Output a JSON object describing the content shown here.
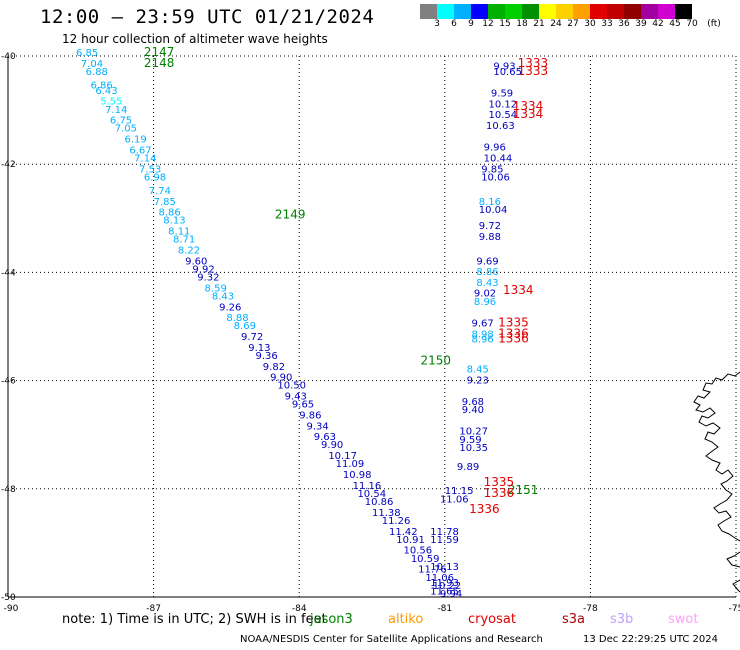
{
  "header": {
    "title": "12:00 – 23:59 UTC 01/21/2024",
    "subtitle": "12 hour collection of altimeter wave heights"
  },
  "color_scale": {
    "unit": "(ft)",
    "colors": [
      "#808080",
      "#00ffff",
      "#00b0ff",
      "#0000ff",
      "#00b000",
      "#00d000",
      "#009000",
      "#ffff00",
      "#ffd000",
      "#ffa000",
      "#e00000",
      "#c00000",
      "#900000",
      "#a000a0",
      "#d000d0",
      "#000000"
    ],
    "labels": [
      "3",
      "6",
      "9",
      "12",
      "15",
      "18",
      "21",
      "24",
      "27",
      "30",
      "33",
      "36",
      "39",
      "42",
      "45",
      "70"
    ]
  },
  "note": "note:  1) Time is in UTC; 2) SWH is in feet",
  "satellites": [
    {
      "name": "jason3",
      "color": "#008000"
    },
    {
      "name": "altiko",
      "color": "#ff9900"
    },
    {
      "name": "cryosat",
      "color": "#e00000"
    },
    {
      "name": "s3a",
      "color": "#b00000"
    },
    {
      "name": "s3b",
      "color": "#c0a0ff"
    },
    {
      "name": "swot",
      "color": "#ffa0ff"
    }
  ],
  "footer": {
    "credit": "NOAA/NESDIS Center for Satellite Applications and Research",
    "timestamp": "13 Dec 22:29:25 UTC 2024"
  },
  "chart_data": {
    "type": "scatter",
    "title": "12:00 – 23:59 UTC 01/21/2024",
    "subtitle": "12 hour collection of altimeter wave heights",
    "xlabel": "",
    "ylabel": "",
    "xlim": [
      -90,
      -75
    ],
    "ylim": [
      -50,
      -40
    ],
    "xticks": [
      -87,
      -84,
      -81,
      -78,
      -75
    ],
    "xtick_labels": [
      "-87",
      "-84",
      "-81",
      "-78",
      "-75"
    ],
    "yticks": [
      -40,
      -42,
      -44,
      -46,
      -48,
      -50
    ],
    "ytick_labels": [
      "-40",
      "-42",
      "-44",
      "-46",
      "-48",
      "-50"
    ],
    "grid": true,
    "series": [
      {
        "name": "jason3",
        "points": [
          {
            "x": -88.6,
            "y": -40.0,
            "v": "6.85"
          },
          {
            "x": -88.5,
            "y": -40.2,
            "v": "7.04"
          },
          {
            "x": -88.4,
            "y": -40.35,
            "v": "6.88"
          },
          {
            "x": -88.3,
            "y": -40.6,
            "v": "6.86"
          },
          {
            "x": -88.2,
            "y": -40.7,
            "v": "6.43"
          },
          {
            "x": -88.1,
            "y": -40.9,
            "v": "5.55"
          },
          {
            "x": -88.0,
            "y": -41.05,
            "v": "7.14"
          },
          {
            "x": -87.9,
            "y": -41.25,
            "v": "6.75"
          },
          {
            "x": -87.8,
            "y": -41.4,
            "v": "7.05"
          },
          {
            "x": -87.6,
            "y": -41.6,
            "v": "6.19"
          },
          {
            "x": -87.5,
            "y": -41.8,
            "v": "6.67"
          },
          {
            "x": -87.4,
            "y": -41.95,
            "v": "7.14"
          },
          {
            "x": -87.3,
            "y": -42.15,
            "v": "7.53"
          },
          {
            "x": -87.2,
            "y": -42.3,
            "v": "6.98"
          },
          {
            "x": -87.1,
            "y": -42.55,
            "v": "7.74"
          },
          {
            "x": -87.0,
            "y": -42.75,
            "v": "7.85"
          },
          {
            "x": -86.9,
            "y": -42.95,
            "v": "8.86"
          },
          {
            "x": -86.8,
            "y": -43.1,
            "v": "8.13"
          },
          {
            "x": -86.7,
            "y": -43.3,
            "v": "8.11"
          },
          {
            "x": -86.6,
            "y": -43.45,
            "v": "8.71"
          },
          {
            "x": -86.5,
            "y": -43.65,
            "v": "8.22"
          },
          {
            "x": -86.35,
            "y": -43.85,
            "v": "9.60"
          },
          {
            "x": -86.2,
            "y": -44.0,
            "v": "9.92"
          },
          {
            "x": -86.1,
            "y": -44.15,
            "v": "9.32"
          },
          {
            "x": -85.95,
            "y": -44.35,
            "v": "8.59"
          },
          {
            "x": -85.8,
            "y": -44.5,
            "v": "8.43"
          },
          {
            "x": -85.65,
            "y": -44.7,
            "v": "9.26"
          },
          {
            "x": -85.5,
            "y": -44.9,
            "v": "8.88"
          },
          {
            "x": -85.35,
            "y": -45.05,
            "v": "8.69"
          },
          {
            "x": -85.2,
            "y": -45.25,
            "v": "9.72"
          },
          {
            "x": -85.05,
            "y": -45.45,
            "v": "9.13"
          },
          {
            "x": -84.9,
            "y": -45.6,
            "v": "9.36"
          },
          {
            "x": -84.75,
            "y": -45.8,
            "v": "9.82"
          },
          {
            "x": -84.6,
            "y": -46.0,
            "v": "9.90"
          },
          {
            "x": -84.45,
            "y": -46.15,
            "v": "10.50"
          },
          {
            "x": -84.3,
            "y": -46.35,
            "v": "9.43"
          },
          {
            "x": -84.15,
            "y": -46.5,
            "v": "9.65"
          },
          {
            "x": -84.0,
            "y": -46.7,
            "v": "9.86"
          },
          {
            "x": -83.85,
            "y": -46.9,
            "v": "9.34"
          },
          {
            "x": -83.7,
            "y": -47.1,
            "v": "9.63"
          },
          {
            "x": -83.55,
            "y": -47.25,
            "v": "9.90"
          },
          {
            "x": -83.4,
            "y": -47.45,
            "v": "10.17"
          },
          {
            "x": -83.25,
            "y": -47.6,
            "v": "11.09"
          },
          {
            "x": -83.1,
            "y": -47.8,
            "v": "10.98"
          },
          {
            "x": -82.9,
            "y": -48.0,
            "v": "11.16"
          },
          {
            "x": -82.8,
            "y": -48.15,
            "v": "10.54"
          },
          {
            "x": -82.65,
            "y": -48.3,
            "v": "10.86"
          },
          {
            "x": -82.5,
            "y": -48.5,
            "v": "11.38"
          },
          {
            "x": -82.3,
            "y": -48.65,
            "v": "11.26"
          },
          {
            "x": -82.15,
            "y": -48.85,
            "v": "11.42"
          },
          {
            "x": -82.0,
            "y": -49.0,
            "v": "10.91"
          },
          {
            "x": -81.85,
            "y": -49.2,
            "v": "10.56"
          },
          {
            "x": -81.7,
            "y": -49.35,
            "v": "10.59"
          },
          {
            "x": -81.55,
            "y": -49.55,
            "v": "11.76"
          },
          {
            "x": -81.4,
            "y": -49.7,
            "v": "11.06"
          },
          {
            "x": -81.25,
            "y": -49.85,
            "v": "10.22"
          },
          {
            "x": -81.1,
            "y": -50.0,
            "v": "9.94"
          }
        ]
      },
      {
        "name": "cryosat",
        "points": [
          {
            "x": -80.0,
            "y": -40.25,
            "v": "9.93"
          },
          {
            "x": -80.0,
            "y": -40.35,
            "v": "10.65"
          },
          {
            "x": -80.05,
            "y": -40.75,
            "v": "9.59"
          },
          {
            "x": -80.1,
            "y": -40.95,
            "v": "10.12"
          },
          {
            "x": -80.1,
            "y": -41.15,
            "v": "10.54"
          },
          {
            "x": -80.15,
            "y": -41.35,
            "v": "10.63"
          },
          {
            "x": -80.2,
            "y": -41.75,
            "v": "9.96"
          },
          {
            "x": -80.2,
            "y": -41.95,
            "v": "10.44"
          },
          {
            "x": -80.25,
            "y": -42.15,
            "v": "9.85"
          },
          {
            "x": -80.25,
            "y": -42.3,
            "v": "10.06"
          },
          {
            "x": -80.3,
            "y": -42.75,
            "v": "8.16"
          },
          {
            "x": -80.3,
            "y": -42.9,
            "v": "10.04"
          },
          {
            "x": -80.3,
            "y": -43.2,
            "v": "9.72"
          },
          {
            "x": -80.3,
            "y": -43.4,
            "v": "9.88"
          },
          {
            "x": -80.35,
            "y": -43.85,
            "v": "9.69"
          },
          {
            "x": -80.35,
            "y": -44.05,
            "v": "8.86"
          },
          {
            "x": -80.35,
            "y": -44.25,
            "v": "8.43"
          },
          {
            "x": -80.4,
            "y": -44.45,
            "v": "9.02"
          },
          {
            "x": -80.4,
            "y": -44.6,
            "v": "8.96"
          },
          {
            "x": -80.45,
            "y": -45.0,
            "v": "9.67"
          },
          {
            "x": -80.45,
            "y": -45.2,
            "v": "8.98"
          },
          {
            "x": -80.45,
            "y": -45.3,
            "v": "8.96"
          },
          {
            "x": -80.55,
            "y": -45.85,
            "v": "8.45"
          },
          {
            "x": -80.55,
            "y": -46.05,
            "v": "9.23"
          },
          {
            "x": -80.65,
            "y": -46.45,
            "v": "9.68"
          },
          {
            "x": -80.65,
            "y": -46.6,
            "v": "9.40"
          },
          {
            "x": -80.7,
            "y": -47.0,
            "v": "10.27"
          },
          {
            "x": -80.7,
            "y": -47.15,
            "v": "9.59"
          },
          {
            "x": -80.7,
            "y": -47.3,
            "v": "10.35"
          },
          {
            "x": -80.75,
            "y": -47.65,
            "v": "9.89"
          },
          {
            "x": -81.0,
            "y": -48.1,
            "v": "11.15"
          },
          {
            "x": -81.1,
            "y": -48.25,
            "v": "11.06"
          },
          {
            "x": -81.3,
            "y": -48.85,
            "v": "11.78"
          },
          {
            "x": -81.3,
            "y": -49.0,
            "v": "11.59"
          },
          {
            "x": -81.3,
            "y": -49.5,
            "v": "10.13"
          },
          {
            "x": -81.3,
            "y": -49.8,
            "v": "11.93"
          },
          {
            "x": -81.3,
            "y": -49.95,
            "v": "11.65"
          }
        ]
      }
    ],
    "pass_labels": [
      {
        "x": -87.2,
        "y": -40.0,
        "text": "2147",
        "color": "#008000"
      },
      {
        "x": -87.2,
        "y": -40.2,
        "text": "2148",
        "color": "#008000"
      },
      {
        "x": -84.5,
        "y": -43.0,
        "text": "2149",
        "color": "#008000"
      },
      {
        "x": -81.5,
        "y": -45.7,
        "text": "2150",
        "color": "#008000"
      },
      {
        "x": -79.7,
        "y": -48.1,
        "text": "2151",
        "color": "#008000"
      },
      {
        "x": -79.5,
        "y": -40.2,
        "text": "1333",
        "color": "#e00000"
      },
      {
        "x": -79.5,
        "y": -40.35,
        "text": "1333",
        "color": "#e00000"
      },
      {
        "x": -79.6,
        "y": -41.0,
        "text": "1334",
        "color": "#e00000"
      },
      {
        "x": -79.6,
        "y": -41.15,
        "text": "1334",
        "color": "#e00000"
      },
      {
        "x": -79.8,
        "y": -44.4,
        "text": "1334",
        "color": "#e00000"
      },
      {
        "x": -79.9,
        "y": -45.0,
        "text": "1335",
        "color": "#e00000"
      },
      {
        "x": -79.9,
        "y": -45.2,
        "text": "1336",
        "color": "#e00000"
      },
      {
        "x": -79.9,
        "y": -45.3,
        "text": "1336",
        "color": "#e00000"
      },
      {
        "x": -80.2,
        "y": -47.95,
        "text": "1335",
        "color": "#e00000"
      },
      {
        "x": -80.2,
        "y": -48.15,
        "text": "1336",
        "color": "#e00000"
      },
      {
        "x": -80.5,
        "y": -48.45,
        "text": "1336",
        "color": "#e00000"
      }
    ]
  }
}
